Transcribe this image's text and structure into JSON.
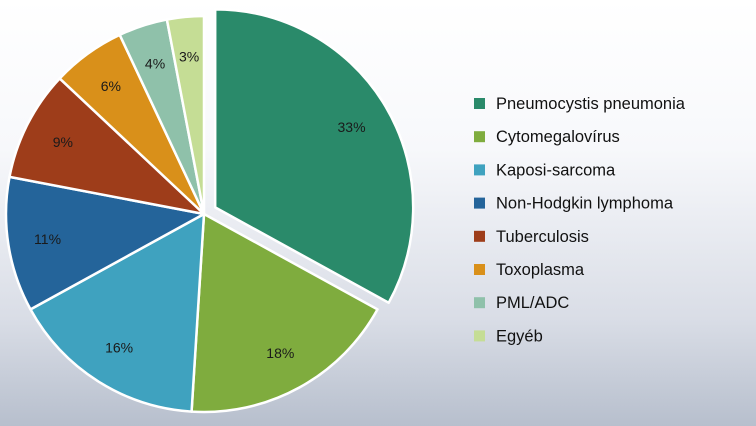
{
  "chart_data": {
    "type": "pie",
    "title": "",
    "legend_position": "right",
    "slices": [
      {
        "name": "Pneumocystis pneumonia",
        "value": 33,
        "label": "33%",
        "color": "#2a8a6a"
      },
      {
        "name": "Cytomegalovírus",
        "value": 18,
        "label": "18%",
        "color": "#7fac3e"
      },
      {
        "name": "Kaposi-sarcoma",
        "value": 16,
        "label": "16%",
        "color": "#3fa2bf"
      },
      {
        "name": "Non-Hodgkin lymphoma",
        "value": 11,
        "label": "11%",
        "color": "#24649a"
      },
      {
        "name": "Tuberculosis",
        "value": 9,
        "label": "9%",
        "color": "#9e3d1a"
      },
      {
        "name": "Toxoplasma",
        "value": 6,
        "label": "6%",
        "color": "#d9901a"
      },
      {
        "name": "PML/ADC",
        "value": 4,
        "label": "4%",
        "color": "#8fc1aa"
      },
      {
        "name": "Egyéb",
        "value": 3,
        "label": "3%",
        "color": "#c5dd95"
      }
    ]
  }
}
